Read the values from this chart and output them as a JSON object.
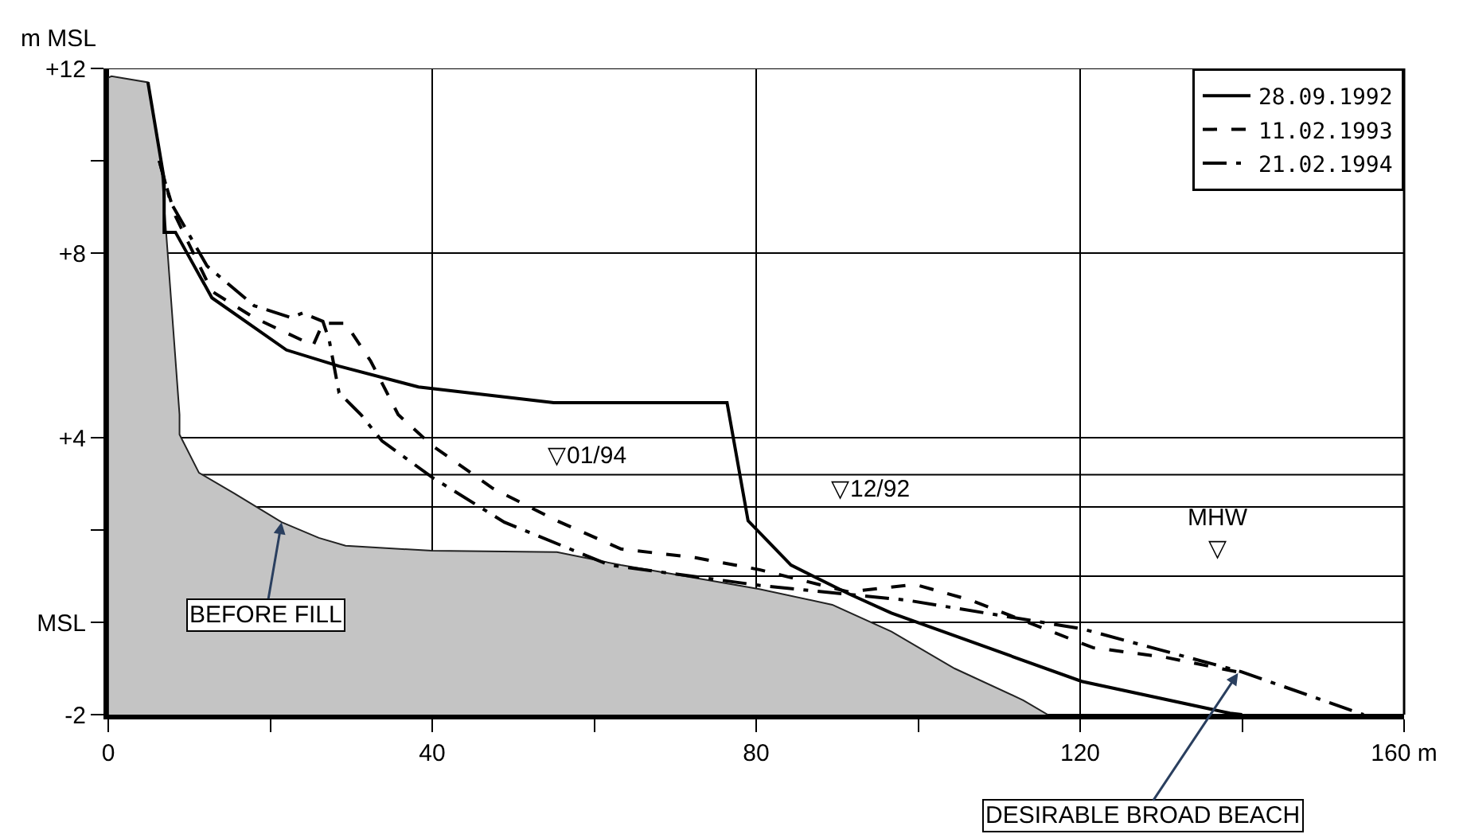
{
  "chart_data": {
    "type": "line",
    "ylabel": "m MSL",
    "xlim": [
      0,
      160
    ],
    "ylim": [
      -2,
      12
    ],
    "xticks": [
      0,
      {
        "value": 20,
        "label": null
      },
      40,
      {
        "value": 60,
        "label": null
      },
      80,
      {
        "value": 100,
        "label": null
      },
      120,
      {
        "value": 140,
        "label": null
      },
      {
        "value": 160,
        "label": "160 m"
      }
    ],
    "yticks": [
      -2,
      {
        "value": 0,
        "label": "MSL"
      },
      {
        "value": 2,
        "label": null
      },
      {
        "value": 4,
        "label": "+4"
      },
      {
        "value": 8,
        "label": "+8"
      },
      {
        "value": 10,
        "label": null
      },
      {
        "value": 12,
        "label": "+12"
      }
    ],
    "grid": true,
    "legend": "top right",
    "series": [
      {
        "type": "area",
        "color": "#c4c4c4",
        "x": [
          0,
          0,
          0.4,
          4.9,
          6.5,
          8.8,
          8.8,
          11.2,
          15.5,
          21.4,
          26,
          29.3,
          40,
          55.4,
          63.3,
          80.4,
          89.4,
          96.7,
          104.5,
          113,
          116
        ],
        "values": [
          -2,
          11.8,
          11.83,
          11.7,
          10.0,
          4.5,
          4.07,
          3.24,
          2.8,
          2.17,
          1.83,
          1.66,
          1.55,
          1.52,
          1.24,
          0.72,
          0.38,
          -0.2,
          -1.0,
          -1.69,
          -2
        ]
      },
      {
        "name": "28.09.1992",
        "color": "#000000",
        "line_style": "solid",
        "x": [
          4.9,
          6.9,
          6.9,
          8.3,
          12.8,
          22,
          28.5,
          38.3,
          55,
          76.4,
          79,
          84.3,
          91.4,
          96.7,
          120.2,
          138.5,
          140
        ],
        "values": [
          11.7,
          9.6,
          8.45,
          8.45,
          7.03,
          5.9,
          5.55,
          5.1,
          4.76,
          4.76,
          2.2,
          1.24,
          0.62,
          0.2,
          -1.28,
          -1.97,
          -2
        ]
      },
      {
        "name": "11.02.1993",
        "color": "#000000",
        "line_style": "dashed",
        "x": [
          6.3,
          6.9,
          8.3,
          12.8,
          18,
          25.3,
          26.5,
          29.3,
          32.4,
          35.8,
          40,
          47.5,
          55.4,
          63.3,
          72.5,
          80.4,
          91.4,
          98.6,
          100,
          106.5,
          121.6,
          130.6,
          139.3
        ],
        "values": [
          10.0,
          9.6,
          8.8,
          7.17,
          6.6,
          6.0,
          6.48,
          6.48,
          5.66,
          4.5,
          3.83,
          2.9,
          2.2,
          1.59,
          1.4,
          1.14,
          0.66,
          0.8,
          0.8,
          0.48,
          -0.55,
          -0.76,
          -1.07
        ]
      },
      {
        "name": "21.02.1994",
        "color": "#000000",
        "line_style": "dashdot",
        "x": [
          6.3,
          7.7,
          12.2,
          18,
          22.6,
          24,
          26.5,
          27.3,
          28.5,
          31.2,
          33.8,
          40,
          48.9,
          61.9,
          80.4,
          98.6,
          120.2,
          139.9,
          155
        ],
        "values": [
          10.0,
          9.1,
          7.72,
          6.86,
          6.6,
          6.7,
          6.52,
          6.1,
          4.97,
          4.5,
          3.93,
          3.14,
          2.17,
          1.24,
          0.8,
          0.48,
          -0.14,
          -1.07,
          -2
        ]
      }
    ],
    "ref_lines": [
      {
        "axis": "y",
        "value": 3.2
      },
      {
        "axis": "y",
        "value": 2.5
      },
      {
        "axis": "y",
        "value": 1
      }
    ],
    "annotations": [
      {
        "text": "▽01/94",
        "x": 55,
        "y": 3.2
      },
      {
        "text": "▽12/92",
        "x": 90,
        "y": 2.5
      },
      {
        "text": "MHW\n▽",
        "x": 137,
        "y": 1
      },
      {
        "text": "BEFORE FILL",
        "x": 21.4,
        "y": 2.17
      },
      {
        "text": "DESIRABLE BROAD BEACH",
        "x": 139.5,
        "y": -1.1
      }
    ]
  }
}
